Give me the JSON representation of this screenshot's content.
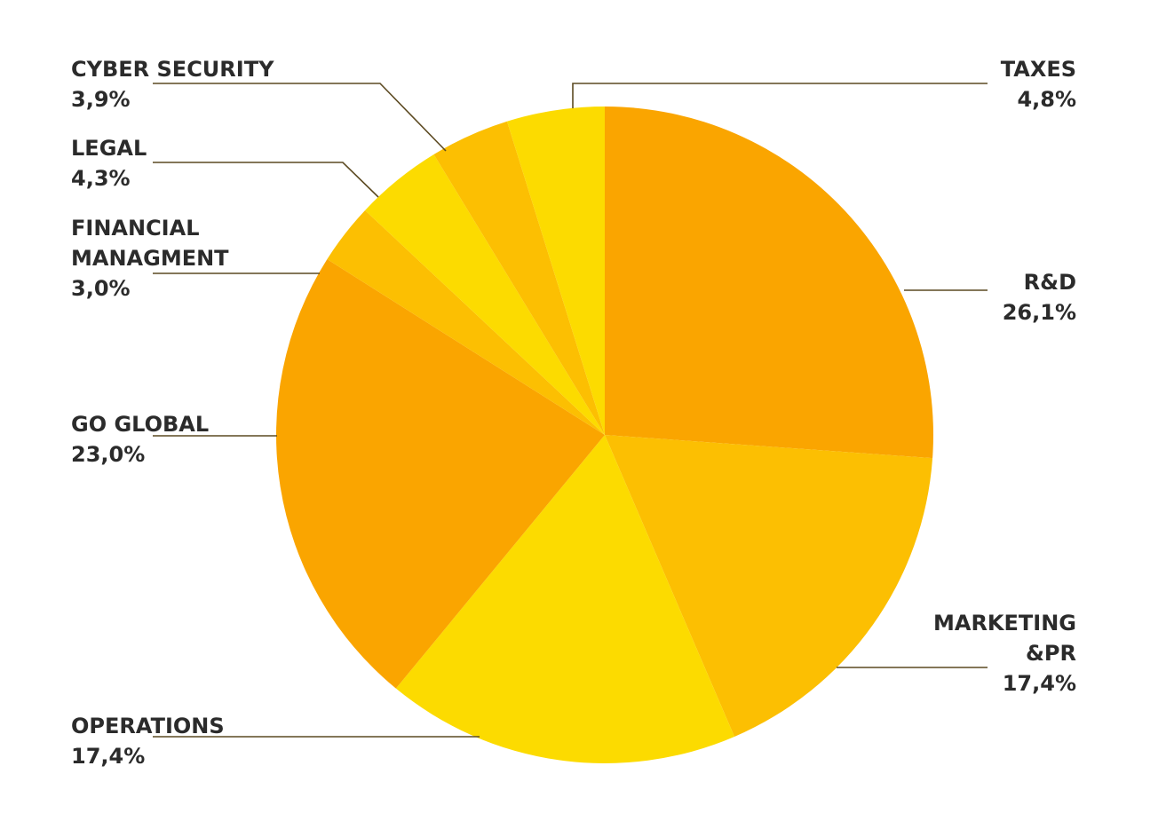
{
  "colors": {
    "dark_orange": "#FAA500",
    "orange": "#FCBF02",
    "yellow": "#FCDB00",
    "label_text": "#2B2B2B",
    "leader_line": "#5C4A22"
  },
  "chart_data": {
    "type": "pie",
    "start_angle_deg": 0,
    "direction": "clockwise",
    "slices": [
      {
        "label_lines": [
          "R&D"
        ],
        "value": 26.1,
        "value_text": "26,1%",
        "color": "#FAA500"
      },
      {
        "label_lines": [
          "MARKETING",
          "&PR"
        ],
        "value": 17.4,
        "value_text": "17,4%",
        "color": "#FCBF02"
      },
      {
        "label_lines": [
          "OPERATIONS"
        ],
        "value": 17.4,
        "value_text": "17,4%",
        "color": "#FCDB00"
      },
      {
        "label_lines": [
          "GO GLOBAL"
        ],
        "value": 23.0,
        "value_text": "23,0%",
        "color": "#FAA500"
      },
      {
        "label_lines": [
          "FINANCIAL",
          "MANAGMENT"
        ],
        "value": 3.0,
        "value_text": "3,0%",
        "color": "#FCBF02"
      },
      {
        "label_lines": [
          "LEGAL"
        ],
        "value": 4.3,
        "value_text": "4,3%",
        "color": "#FCDB00"
      },
      {
        "label_lines": [
          "CYBER SECURITY"
        ],
        "value": 3.9,
        "value_text": "3,9%",
        "color": "#FCBF02"
      },
      {
        "label_lines": [
          "TAXES"
        ],
        "value": 4.8,
        "value_text": "4,8%",
        "color": "#FCDB00"
      }
    ]
  }
}
